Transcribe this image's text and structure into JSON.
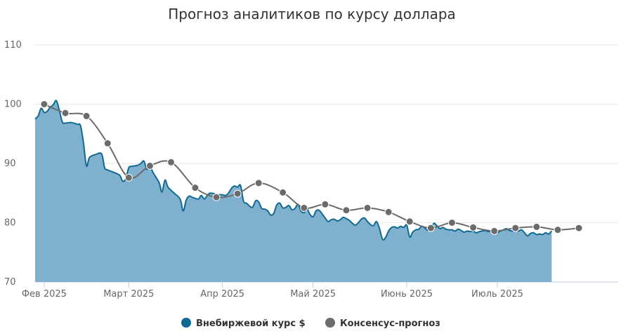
{
  "chart_data": {
    "type": "area",
    "title": "Прогноз аналитиков по курсу доллара",
    "xlabel": "",
    "ylabel": "",
    "ylim": [
      70,
      110
    ],
    "yticks": [
      70,
      80,
      90,
      100,
      110
    ],
    "xlim": [
      "2025-01-29",
      "2025-08-10"
    ],
    "xticks": [
      {
        "date": "2025-02-01",
        "label": "Фев 2025"
      },
      {
        "date": "2025-03-01",
        "label": "Март 2025"
      },
      {
        "date": "2025-04-01",
        "label": "Апр 2025"
      },
      {
        "date": "2025-05-01",
        "label": "Май 2025"
      },
      {
        "date": "2025-06-01",
        "label": "Июнь 2025"
      },
      {
        "date": "2025-07-01",
        "label": "Июль 2025"
      }
    ],
    "grid": true,
    "legend_position": "bottom-center",
    "colors": {
      "exchange": "#0f6a92",
      "exchange_fill": "#7fb0cd",
      "consensus": "#6b6b6b"
    },
    "series": [
      {
        "name": "Внебиржевой курс $",
        "type": "area",
        "points": [
          [
            "2025-01-29",
            97.5
          ],
          [
            "2025-01-30",
            98.0
          ],
          [
            "2025-01-31",
            99.3
          ],
          [
            "2025-02-01",
            98.6
          ],
          [
            "2025-02-02",
            98.8
          ],
          [
            "2025-02-03",
            99.5
          ],
          [
            "2025-02-04",
            99.9
          ],
          [
            "2025-02-05",
            100.6
          ],
          [
            "2025-02-06",
            99.0
          ],
          [
            "2025-02-07",
            97.0
          ],
          [
            "2025-02-08",
            96.8
          ],
          [
            "2025-02-10",
            96.9
          ],
          [
            "2025-02-12",
            96.6
          ],
          [
            "2025-02-13",
            96.4
          ],
          [
            "2025-02-14",
            93.5
          ],
          [
            "2025-02-15",
            89.6
          ],
          [
            "2025-02-16",
            91.0
          ],
          [
            "2025-02-18",
            91.5
          ],
          [
            "2025-02-20",
            91.6
          ],
          [
            "2025-02-21",
            89.3
          ],
          [
            "2025-02-22",
            88.9
          ],
          [
            "2025-02-24",
            88.5
          ],
          [
            "2025-02-26",
            88.0
          ],
          [
            "2025-02-27",
            87.0
          ],
          [
            "2025-02-28",
            87.4
          ],
          [
            "2025-03-01",
            89.3
          ],
          [
            "2025-03-02",
            89.5
          ],
          [
            "2025-03-04",
            89.7
          ],
          [
            "2025-03-05",
            90.0
          ],
          [
            "2025-03-06",
            90.4
          ],
          [
            "2025-03-07",
            89.0
          ],
          [
            "2025-03-08",
            89.6
          ],
          [
            "2025-03-09",
            88.5
          ],
          [
            "2025-03-11",
            86.8
          ],
          [
            "2025-03-12",
            85.2
          ],
          [
            "2025-03-13",
            87.2
          ],
          [
            "2025-03-14",
            86.0
          ],
          [
            "2025-03-16",
            85.0
          ],
          [
            "2025-03-18",
            84.0
          ],
          [
            "2025-03-19",
            82.0
          ],
          [
            "2025-03-20",
            83.8
          ],
          [
            "2025-03-21",
            84.5
          ],
          [
            "2025-03-22",
            84.3
          ],
          [
            "2025-03-24",
            84.0
          ],
          [
            "2025-03-25",
            84.6
          ],
          [
            "2025-03-26",
            84.0
          ],
          [
            "2025-03-27",
            84.6
          ],
          [
            "2025-03-28",
            85.0
          ],
          [
            "2025-03-30",
            84.8
          ],
          [
            "2025-04-01",
            84.7
          ],
          [
            "2025-04-02",
            84.6
          ],
          [
            "2025-04-03",
            85.0
          ],
          [
            "2025-04-04",
            85.8
          ],
          [
            "2025-04-05",
            86.2
          ],
          [
            "2025-04-06",
            86.0
          ],
          [
            "2025-04-07",
            86.3
          ],
          [
            "2025-04-08",
            83.6
          ],
          [
            "2025-04-09",
            83.3
          ],
          [
            "2025-04-10",
            82.8
          ],
          [
            "2025-04-11",
            82.6
          ],
          [
            "2025-04-12",
            83.7
          ],
          [
            "2025-04-13",
            83.5
          ],
          [
            "2025-04-14",
            82.4
          ],
          [
            "2025-04-15",
            82.3
          ],
          [
            "2025-04-16",
            82.0
          ],
          [
            "2025-04-17",
            81.3
          ],
          [
            "2025-04-18",
            81.6
          ],
          [
            "2025-04-19",
            83.0
          ],
          [
            "2025-04-20",
            83.3
          ],
          [
            "2025-04-21",
            82.5
          ],
          [
            "2025-04-22",
            82.6
          ],
          [
            "2025-04-23",
            82.9
          ],
          [
            "2025-04-24",
            82.2
          ],
          [
            "2025-04-25",
            82.4
          ],
          [
            "2025-04-26",
            83.1
          ],
          [
            "2025-04-27",
            82.0
          ],
          [
            "2025-04-28",
            81.7
          ],
          [
            "2025-04-29",
            82.3
          ],
          [
            "2025-04-30",
            81.4
          ],
          [
            "2025-05-01",
            81.0
          ],
          [
            "2025-05-02",
            82.0
          ],
          [
            "2025-05-03",
            82.1
          ],
          [
            "2025-05-04",
            81.5
          ],
          [
            "2025-05-05",
            80.8
          ],
          [
            "2025-05-06",
            80.2
          ],
          [
            "2025-05-07",
            80.5
          ],
          [
            "2025-05-08",
            80.6
          ],
          [
            "2025-05-09",
            80.3
          ],
          [
            "2025-05-10",
            80.5
          ],
          [
            "2025-05-11",
            80.9
          ],
          [
            "2025-05-12",
            80.7
          ],
          [
            "2025-05-13",
            80.4
          ],
          [
            "2025-05-14",
            79.9
          ],
          [
            "2025-05-15",
            79.6
          ],
          [
            "2025-05-16",
            80.0
          ],
          [
            "2025-05-17",
            80.6
          ],
          [
            "2025-05-18",
            80.8
          ],
          [
            "2025-05-19",
            80.2
          ],
          [
            "2025-05-20",
            79.7
          ],
          [
            "2025-05-21",
            79.5
          ],
          [
            "2025-05-22",
            80.2
          ],
          [
            "2025-05-23",
            79.0
          ],
          [
            "2025-05-24",
            77.2
          ],
          [
            "2025-05-25",
            77.5
          ],
          [
            "2025-05-26",
            78.6
          ],
          [
            "2025-05-27",
            79.2
          ],
          [
            "2025-05-28",
            79.3
          ],
          [
            "2025-05-29",
            79.1
          ],
          [
            "2025-05-30",
            79.4
          ],
          [
            "2025-05-31",
            79.2
          ],
          [
            "2025-06-01",
            79.6
          ],
          [
            "2025-06-02",
            77.6
          ],
          [
            "2025-06-03",
            78.4
          ],
          [
            "2025-06-04",
            78.8
          ],
          [
            "2025-06-05",
            78.9
          ],
          [
            "2025-06-06",
            79.4
          ],
          [
            "2025-06-07",
            79.1
          ],
          [
            "2025-06-08",
            78.7
          ],
          [
            "2025-06-09",
            79.0
          ],
          [
            "2025-06-10",
            79.9
          ],
          [
            "2025-06-11",
            79.5
          ],
          [
            "2025-06-12",
            79.0
          ],
          [
            "2025-06-13",
            79.2
          ],
          [
            "2025-06-14",
            78.9
          ],
          [
            "2025-06-15",
            78.8
          ],
          [
            "2025-06-16",
            78.8
          ],
          [
            "2025-06-17",
            78.6
          ],
          [
            "2025-06-18",
            78.9
          ],
          [
            "2025-06-19",
            78.7
          ],
          [
            "2025-06-20",
            78.4
          ],
          [
            "2025-06-21",
            78.6
          ],
          [
            "2025-06-22",
            78.5
          ],
          [
            "2025-06-23",
            78.6
          ],
          [
            "2025-06-24",
            78.3
          ],
          [
            "2025-06-25",
            78.5
          ],
          [
            "2025-06-26",
            78.6
          ],
          [
            "2025-06-27",
            78.7
          ],
          [
            "2025-06-28",
            78.5
          ],
          [
            "2025-06-29",
            78.6
          ],
          [
            "2025-06-30",
            78.4
          ],
          [
            "2025-07-01",
            78.3
          ],
          [
            "2025-07-02",
            78.6
          ],
          [
            "2025-07-03",
            78.8
          ],
          [
            "2025-07-04",
            79.0
          ],
          [
            "2025-07-05",
            78.7
          ],
          [
            "2025-07-06",
            78.6
          ],
          [
            "2025-07-07",
            78.7
          ],
          [
            "2025-07-08",
            78.6
          ],
          [
            "2025-07-09",
            78.8
          ],
          [
            "2025-07-10",
            78.3
          ],
          [
            "2025-07-11",
            77.8
          ],
          [
            "2025-07-12",
            78.2
          ],
          [
            "2025-07-13",
            78.3
          ],
          [
            "2025-07-14",
            78.0
          ],
          [
            "2025-07-15",
            78.1
          ],
          [
            "2025-07-16",
            78.0
          ],
          [
            "2025-07-17",
            78.3
          ],
          [
            "2025-07-18",
            78.1
          ],
          [
            "2025-07-19",
            78.6
          ]
        ]
      },
      {
        "name": "Консенсус-прогноз",
        "type": "line",
        "points": [
          [
            "2025-02-01",
            100.0
          ],
          [
            "2025-02-08",
            98.5
          ],
          [
            "2025-02-15",
            98.0
          ],
          [
            "2025-02-22",
            93.4
          ],
          [
            "2025-03-01",
            87.6
          ],
          [
            "2025-03-08",
            89.6
          ],
          [
            "2025-03-15",
            90.2
          ],
          [
            "2025-03-23",
            85.9
          ],
          [
            "2025-03-30",
            84.3
          ],
          [
            "2025-04-06",
            84.9
          ],
          [
            "2025-04-13",
            86.7
          ],
          [
            "2025-04-21",
            85.1
          ],
          [
            "2025-04-28",
            82.5
          ],
          [
            "2025-05-05",
            83.1
          ],
          [
            "2025-05-12",
            82.1
          ],
          [
            "2025-05-19",
            82.5
          ],
          [
            "2025-05-26",
            81.8
          ],
          [
            "2025-06-02",
            80.2
          ],
          [
            "2025-06-09",
            79.1
          ],
          [
            "2025-06-16",
            80.0
          ],
          [
            "2025-06-23",
            79.2
          ],
          [
            "2025-06-30",
            78.6
          ],
          [
            "2025-07-07",
            79.1
          ],
          [
            "2025-07-14",
            79.3
          ],
          [
            "2025-07-21",
            78.8
          ],
          [
            "2025-07-28",
            79.1
          ]
        ]
      }
    ]
  }
}
